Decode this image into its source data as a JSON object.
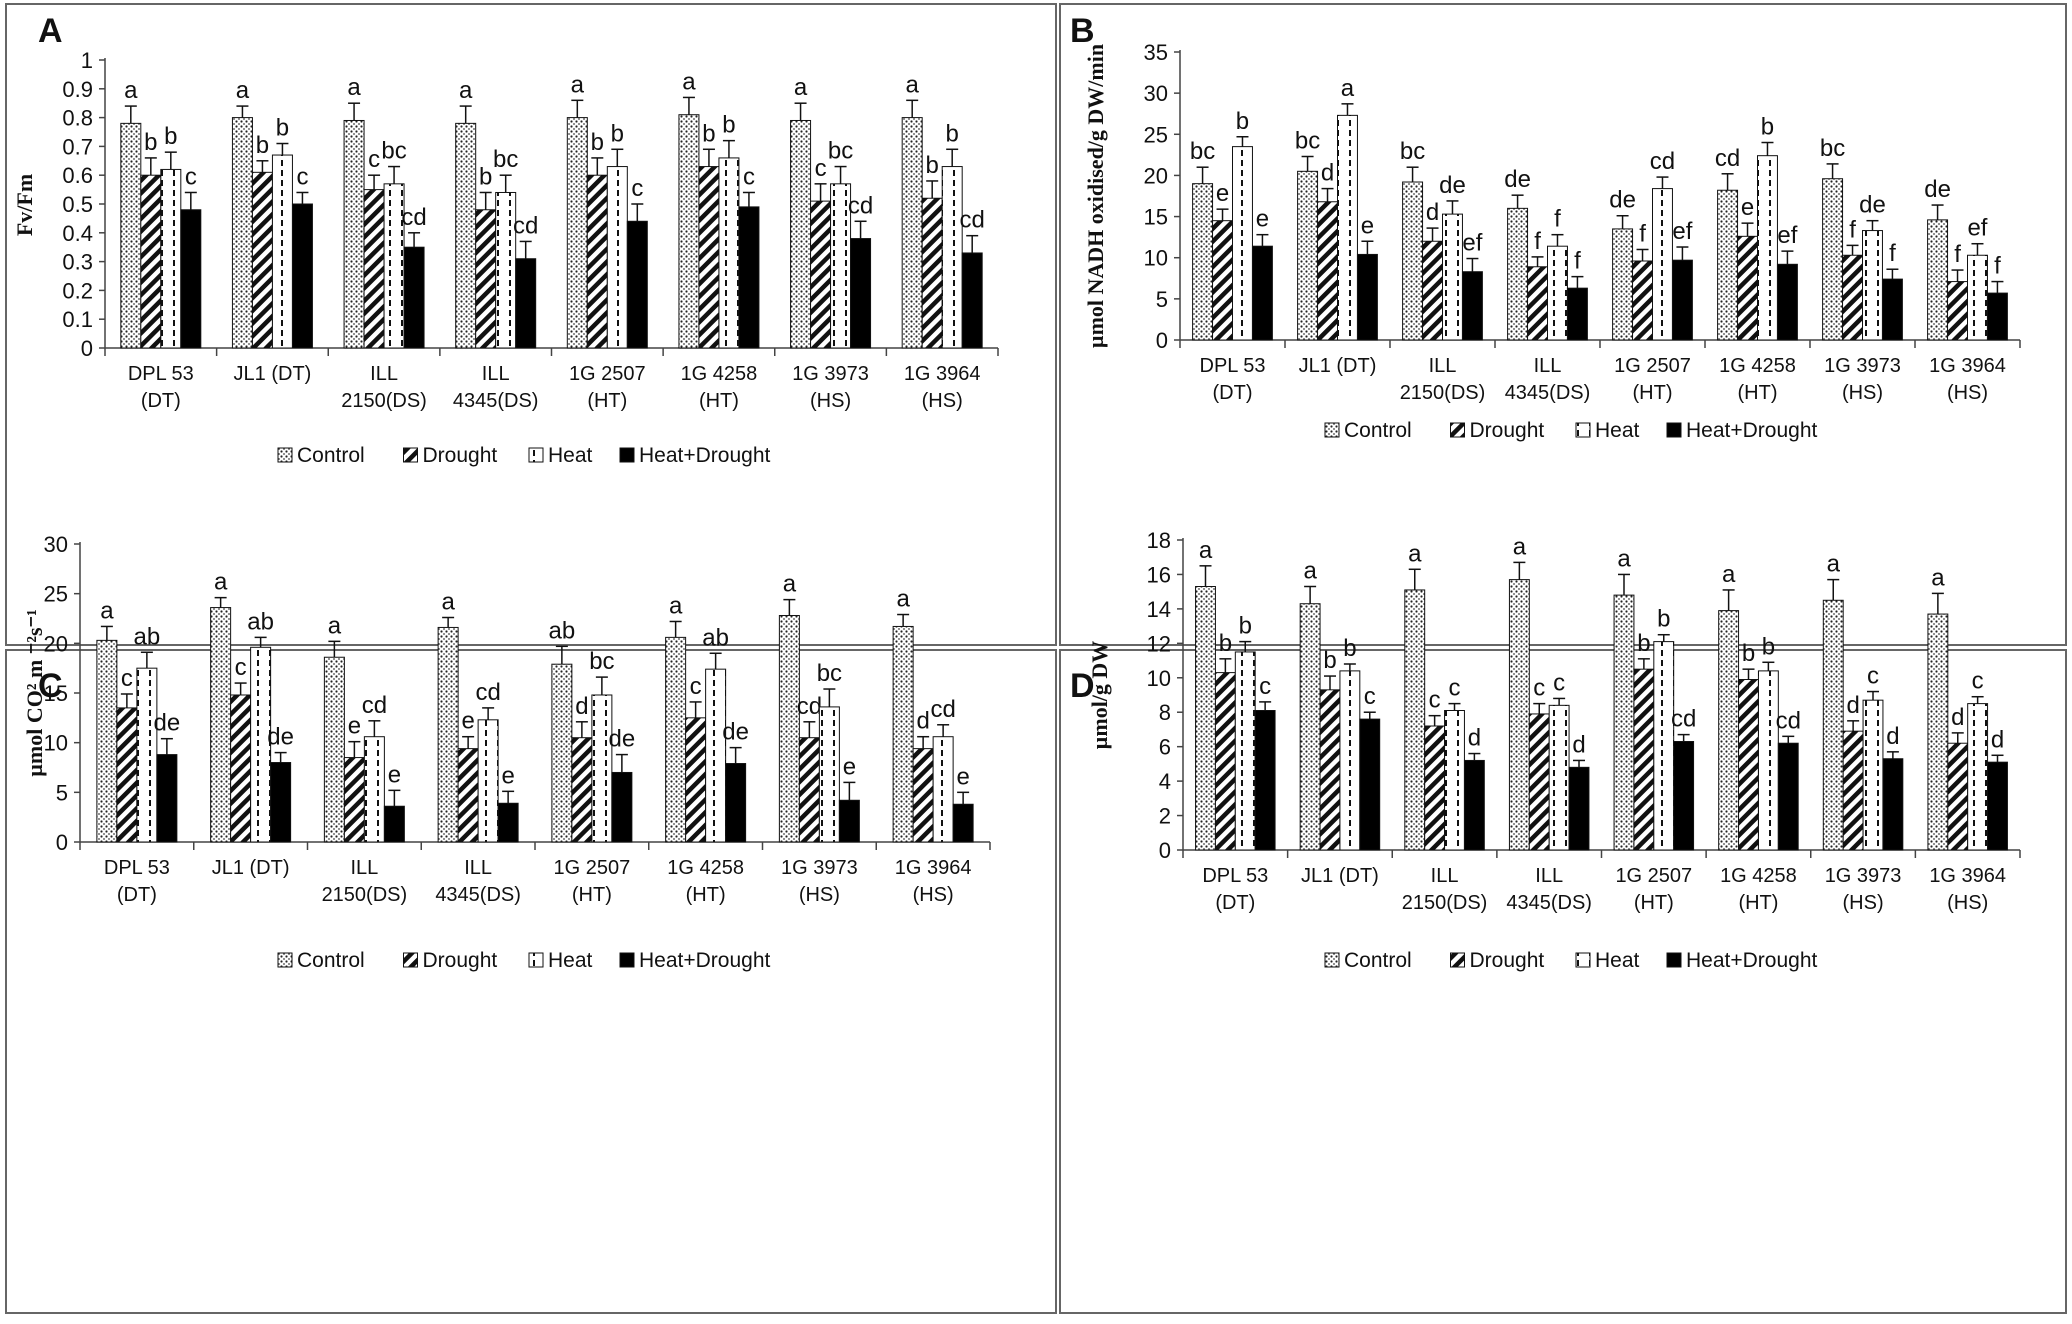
{
  "figure": {
    "legend": [
      "Control",
      "Drought",
      "Heat",
      "Heat+Drought"
    ],
    "categories": [
      [
        "DPL 53",
        "(DT)"
      ],
      [
        "JL1 (DT)"
      ],
      [
        "ILL",
        "2150(DS)"
      ],
      [
        "ILL",
        "4345(DS)"
      ],
      [
        "1G 2507",
        "(HT)"
      ],
      [
        "1G 4258",
        "(HT)"
      ],
      [
        "1G 3973",
        "(HS)"
      ],
      [
        "1G 3964",
        "(HS)"
      ]
    ]
  },
  "chart_data": [
    {
      "panel": "A",
      "type": "bar",
      "ylabel": "Fv/Fm",
      "ylim": [
        0,
        1
      ],
      "yticks": [
        "0",
        "0.1",
        "0.2",
        "0.3",
        "0.4",
        "0.5",
        "0.6",
        "0.7",
        "0.8",
        "0.9",
        "1"
      ],
      "categories": [
        "DPL 53 (DT)",
        "JL1 (DT)",
        "ILL 2150(DS)",
        "ILL 4345(DS)",
        "1G 2507 (HT)",
        "1G 4258 (HT)",
        "1G 3973 (HS)",
        "1G 3964 (HS)"
      ],
      "series": [
        {
          "name": "Control",
          "values": [
            0.78,
            0.8,
            0.79,
            0.78,
            0.8,
            0.81,
            0.79,
            0.8
          ],
          "errors": [
            0.06,
            0.04,
            0.06,
            0.06,
            0.06,
            0.06,
            0.06,
            0.06
          ],
          "letters": [
            "a",
            "a",
            "a",
            "a",
            "a",
            "a",
            "a",
            "a"
          ]
        },
        {
          "name": "Drought",
          "values": [
            0.6,
            0.61,
            0.55,
            0.48,
            0.6,
            0.63,
            0.51,
            0.52
          ],
          "errors": [
            0.06,
            0.04,
            0.05,
            0.06,
            0.06,
            0.06,
            0.06,
            0.06
          ],
          "letters": [
            "b",
            "b",
            "c",
            "b",
            "b",
            "b",
            "c",
            "b"
          ]
        },
        {
          "name": "Heat",
          "values": [
            0.62,
            0.67,
            0.57,
            0.54,
            0.63,
            0.66,
            0.57,
            0.63
          ],
          "errors": [
            0.06,
            0.04,
            0.06,
            0.06,
            0.06,
            0.06,
            0.06,
            0.06
          ],
          "letters": [
            "b",
            "b",
            "bc",
            "bc",
            "b",
            "b",
            "bc",
            "b"
          ]
        },
        {
          "name": "Heat+Drought",
          "values": [
            0.48,
            0.5,
            0.35,
            0.31,
            0.44,
            0.49,
            0.38,
            0.33
          ],
          "errors": [
            0.06,
            0.04,
            0.05,
            0.06,
            0.06,
            0.05,
            0.06,
            0.06
          ],
          "letters": [
            "c",
            "c",
            "cd",
            "cd",
            "c",
            "c",
            "cd",
            "cd"
          ]
        }
      ]
    },
    {
      "panel": "B",
      "type": "bar",
      "ylabel": "µmol NADH oxidised/g DW/min",
      "ylim": [
        0,
        35
      ],
      "yticks": [
        "0",
        "5",
        "10",
        "15",
        "20",
        "25",
        "30",
        "35"
      ],
      "categories": [
        "DPL 53 (DT)",
        "JL1 (DT)",
        "ILL 2150(DS)",
        "ILL 4345(DS)",
        "1G 2507 (HT)",
        "1G 4258 (HT)",
        "1G 3973 (HS)",
        "1G 3964 (HS)"
      ],
      "series": [
        {
          "name": "Control",
          "values": [
            19.0,
            20.5,
            19.2,
            16.0,
            13.5,
            18.2,
            19.6,
            14.6
          ],
          "errors": [
            2.0,
            1.8,
            1.8,
            1.6,
            1.6,
            2.0,
            1.8,
            1.8
          ],
          "letters": [
            "bc",
            "bc",
            "bc",
            "de",
            "de",
            "cd",
            "bc",
            "de"
          ]
        },
        {
          "name": "Drought",
          "values": [
            14.5,
            16.8,
            12.0,
            8.9,
            9.6,
            12.6,
            10.3,
            7.1
          ],
          "errors": [
            1.4,
            1.6,
            1.6,
            1.2,
            1.4,
            1.6,
            1.2,
            1.4
          ],
          "letters": [
            "e",
            "d",
            "d",
            "f",
            "f",
            "e",
            "f",
            "f"
          ]
        },
        {
          "name": "Heat",
          "values": [
            23.5,
            27.3,
            15.3,
            11.4,
            18.4,
            22.4,
            13.3,
            10.3
          ],
          "errors": [
            1.2,
            1.4,
            1.6,
            1.4,
            1.4,
            1.6,
            1.2,
            1.4
          ],
          "letters": [
            "b",
            "a",
            "de",
            "f",
            "cd",
            "b",
            "de",
            "ef"
          ]
        },
        {
          "name": "Heat+Drought",
          "values": [
            11.4,
            10.4,
            8.3,
            6.3,
            9.7,
            9.2,
            7.4,
            5.7
          ],
          "errors": [
            1.4,
            1.6,
            1.6,
            1.4,
            1.6,
            1.6,
            1.2,
            1.4
          ],
          "letters": [
            "e",
            "e",
            "ef",
            "f",
            "ef",
            "ef",
            "f",
            "f"
          ]
        }
      ]
    },
    {
      "panel": "C",
      "type": "bar",
      "ylabel": "µmol CO² m ⁻²s⁻¹",
      "ylim": [
        0,
        30
      ],
      "yticks": [
        "0",
        "5",
        "10",
        "15",
        "20",
        "25",
        "30"
      ],
      "categories": [
        "DPL 53 (DT)",
        "JL1 (DT)",
        "ILL 2150(DS)",
        "ILL 4345(DS)",
        "1G 2507 (HT)",
        "1G 4258 (HT)",
        "1G 3973 (HS)",
        "1G 3964 (HS)"
      ],
      "series": [
        {
          "name": "Control",
          "values": [
            20.3,
            23.6,
            18.6,
            21.6,
            17.9,
            20.6,
            22.8,
            21.7
          ],
          "errors": [
            1.4,
            1.0,
            1.6,
            1.0,
            1.8,
            1.6,
            1.6,
            1.2
          ],
          "letters": [
            "a",
            "a",
            "a",
            "a",
            "ab",
            "a",
            "a",
            "a"
          ]
        },
        {
          "name": "Drought",
          "values": [
            13.5,
            14.8,
            8.5,
            9.4,
            10.5,
            12.5,
            10.5,
            9.4
          ],
          "errors": [
            1.4,
            1.2,
            1.6,
            1.2,
            1.6,
            1.6,
            1.6,
            1.2
          ],
          "letters": [
            "c",
            "c",
            "e",
            "e",
            "d",
            "c",
            "cd",
            "d"
          ]
        },
        {
          "name": "Heat",
          "values": [
            17.5,
            19.6,
            10.6,
            12.3,
            14.8,
            17.4,
            13.6,
            10.6
          ],
          "errors": [
            1.6,
            1.0,
            1.6,
            1.2,
            1.8,
            1.6,
            1.8,
            1.2
          ],
          "letters": [
            "ab",
            "ab",
            "cd",
            "cd",
            "bc",
            "ab",
            "bc",
            "cd"
          ]
        },
        {
          "name": "Heat+Drought",
          "values": [
            8.8,
            8.0,
            3.6,
            3.9,
            7.0,
            7.9,
            4.2,
            3.8
          ],
          "errors": [
            1.6,
            1.0,
            1.6,
            1.2,
            1.8,
            1.6,
            1.8,
            1.2
          ],
          "letters": [
            "de",
            "de",
            "e",
            "e",
            "de",
            "de",
            "e",
            "e"
          ]
        }
      ]
    },
    {
      "panel": "D",
      "type": "bar",
      "ylabel": "µmol/g DW",
      "ylim": [
        0,
        18
      ],
      "yticks": [
        "0",
        "2",
        "4",
        "6",
        "8",
        "10",
        "12",
        "14",
        "16",
        "18"
      ],
      "categories": [
        "DPL 53 (DT)",
        "JL1 (DT)",
        "ILL 2150(DS)",
        "ILL 4345(DS)",
        "1G 2507 (HT)",
        "1G 4258 (HT)",
        "1G 3973 (HS)",
        "1G 3964 (HS)"
      ],
      "series": [
        {
          "name": "Control",
          "values": [
            15.3,
            14.3,
            15.1,
            15.7,
            14.8,
            13.9,
            14.5,
            13.7
          ],
          "errors": [
            1.2,
            1.0,
            1.2,
            1.0,
            1.2,
            1.2,
            1.2,
            1.2
          ],
          "letters": [
            "a",
            "a",
            "a",
            "a",
            "a",
            "a",
            "a",
            "a"
          ]
        },
        {
          "name": "Drought",
          "values": [
            10.3,
            9.3,
            7.2,
            7.9,
            10.5,
            9.9,
            6.9,
            6.2
          ],
          "errors": [
            0.8,
            0.8,
            0.6,
            0.6,
            0.6,
            0.6,
            0.6,
            0.6
          ],
          "letters": [
            "b",
            "b",
            "c",
            "c",
            "b",
            "b",
            "d",
            "d"
          ]
        },
        {
          "name": "Heat",
          "values": [
            11.5,
            10.4,
            8.1,
            8.4,
            12.1,
            10.4,
            8.7,
            8.5
          ],
          "errors": [
            0.6,
            0.4,
            0.4,
            0.4,
            0.4,
            0.5,
            0.5,
            0.4
          ],
          "letters": [
            "b",
            "b",
            "c",
            "c",
            "b",
            "b",
            "c",
            "c"
          ]
        },
        {
          "name": "Heat+Drought",
          "values": [
            8.1,
            7.6,
            5.2,
            4.8,
            6.3,
            6.2,
            5.3,
            5.1
          ],
          "errors": [
            0.5,
            0.4,
            0.4,
            0.4,
            0.4,
            0.4,
            0.4,
            0.4
          ],
          "letters": [
            "c",
            "c",
            "d",
            "d",
            "cd",
            "cd",
            "d",
            "d"
          ]
        }
      ]
    }
  ]
}
